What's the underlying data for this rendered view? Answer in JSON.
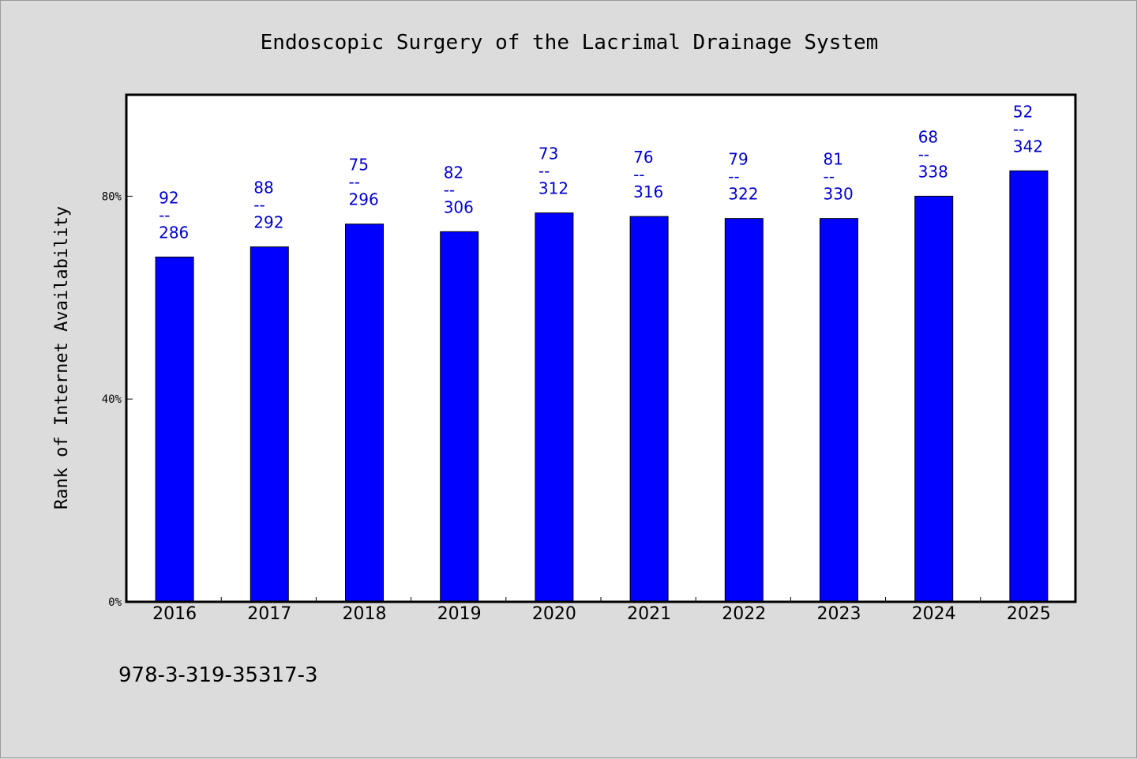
{
  "footer_text": "978-3-319-35317-3",
  "colors": {
    "background": "#dcdcdc",
    "plot_background": "#ffffff",
    "bar": "#0000ff",
    "label": "#0000cc",
    "axis": "#000000"
  },
  "chart_data": {
    "type": "bar",
    "title": "Endoscopic Surgery of the Lacrimal Drainage System",
    "xlabel": "",
    "ylabel": "Rank of Internet Availability",
    "ylim": [
      0,
      100
    ],
    "yticks": [
      0,
      40,
      80
    ],
    "ytick_labels": [
      "0%",
      "40%",
      "80%"
    ],
    "grid": false,
    "legend": "none",
    "categories": [
      "2016",
      "2017",
      "2018",
      "2019",
      "2020",
      "2021",
      "2022",
      "2023",
      "2024",
      "2025"
    ],
    "values": [
      68,
      70,
      74.5,
      73,
      76.7,
      76,
      75.6,
      75.6,
      80,
      85
    ],
    "label_numerators": [
      "92",
      "88",
      "75",
      "82",
      "73",
      "76",
      "79",
      "81",
      "68",
      "52"
    ],
    "label_separator": "--",
    "label_denominators": [
      "286",
      "292",
      "296",
      "306",
      "312",
      "316",
      "322",
      "330",
      "338",
      "342"
    ]
  }
}
